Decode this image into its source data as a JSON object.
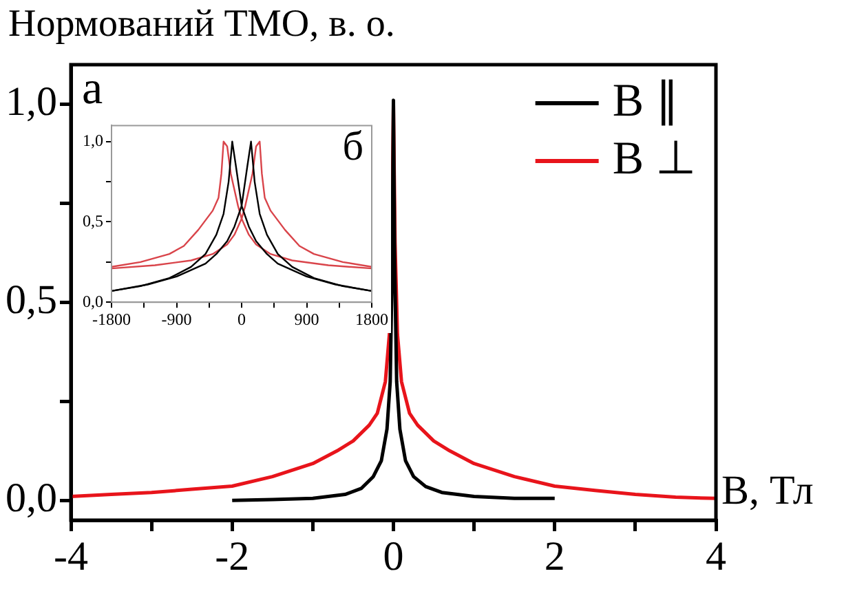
{
  "chart_data": [
    {
      "type": "line",
      "ylabel": "Нормований ТМО, в. о.",
      "xlabel": "B, Тл",
      "annotations": [
        "а"
      ],
      "legend": "top right",
      "grid": false,
      "marker": "none",
      "line_style": "solid",
      "xlim": [
        -4,
        4
      ],
      "xticks": [
        -4,
        {
          "value": -3,
          "label": null
        },
        -2,
        {
          "value": -1,
          "label": null
        },
        0,
        {
          "value": 1,
          "label": null
        },
        2,
        {
          "value": 3,
          "label": null
        },
        4
      ],
      "ylim": [
        -0.05,
        1.1
      ],
      "yticks": [
        {
          "value": 0,
          "label": "0,0"
        },
        {
          "value": 0.25,
          "label": null
        },
        {
          "value": 0.5,
          "label": "0,5"
        },
        {
          "value": 0.75,
          "label": null
        },
        {
          "value": 1,
          "label": "1,0"
        }
      ],
      "series": [
        {
          "name": "B ∥",
          "color": "#000000",
          "x": [
            -2,
            -1.5,
            -1,
            -0.6,
            -0.4,
            -0.25,
            -0.15,
            -0.08,
            -0.04,
            -0.015,
            0,
            0.015,
            0.04,
            0.08,
            0.15,
            0.25,
            0.4,
            0.6,
            1,
            1.5,
            2
          ],
          "values": [
            0,
            0.002,
            0.005,
            0.015,
            0.03,
            0.06,
            0.1,
            0.18,
            0.3,
            0.6,
            1.01,
            0.6,
            0.3,
            0.18,
            0.1,
            0.06,
            0.035,
            0.02,
            0.01,
            0.005,
            0.005
          ]
        },
        {
          "name": "B ⊥",
          "color": "#e8141b",
          "x": [
            -4,
            -3.5,
            -3,
            -2.5,
            -2,
            -1.5,
            -1,
            -0.7,
            -0.5,
            -0.3,
            -0.2,
            -0.1,
            -0.05,
            -0.02,
            0,
            0.02,
            0.05,
            0.1,
            0.2,
            0.3,
            0.5,
            0.7,
            1,
            1.5,
            2,
            2.5,
            3,
            3.5,
            4
          ],
          "values": [
            0.01,
            0.015,
            0.02,
            0.028,
            0.036,
            0.06,
            0.093,
            0.125,
            0.15,
            0.19,
            0.22,
            0.3,
            0.42,
            0.65,
            1.0,
            0.65,
            0.42,
            0.3,
            0.22,
            0.19,
            0.15,
            0.125,
            0.093,
            0.06,
            0.036,
            0.025,
            0.015,
            0.008,
            0.005
          ]
        }
      ]
    },
    {
      "type": "line",
      "annotations": [
        "б"
      ],
      "grid": false,
      "marker": "none",
      "line_style": "solid",
      "xlim": [
        -1800,
        1800
      ],
      "xticks": [
        -1800,
        {
          "value": -1350,
          "label": null
        },
        -900,
        {
          "value": -450,
          "label": null
        },
        0,
        {
          "value": 450,
          "label": null
        },
        900,
        {
          "value": 1350,
          "label": null
        },
        1800
      ],
      "ylim": [
        0,
        1.1
      ],
      "yticks": [
        {
          "value": 0,
          "label": "0,0"
        },
        {
          "value": 0.25,
          "label": null
        },
        {
          "value": 0.5,
          "label": "0,5"
        },
        {
          "value": 0.75,
          "label": null
        },
        {
          "value": 1,
          "label": "1,0"
        }
      ],
      "series": [
        {
          "color": "#000000",
          "x": [
            -1800,
            -1400,
            -1000,
            -700,
            -500,
            -350,
            -250,
            -180,
            -130,
            -80,
            0,
            100,
            200,
            350,
            500,
            900,
            1300,
            1800
          ],
          "values": [
            0.07,
            0.1,
            0.15,
            0.22,
            0.3,
            0.42,
            0.55,
            0.75,
            1.0,
            0.85,
            0.6,
            0.47,
            0.38,
            0.3,
            0.24,
            0.16,
            0.11,
            0.07
          ]
        },
        {
          "color": "#000000",
          "x": [
            -1800,
            -1300,
            -900,
            -500,
            -350,
            -200,
            -100,
            0,
            80,
            130,
            180,
            250,
            350,
            500,
            700,
            1000,
            1400,
            1800
          ],
          "values": [
            0.07,
            0.11,
            0.16,
            0.24,
            0.3,
            0.38,
            0.47,
            0.6,
            0.85,
            1.0,
            0.75,
            0.55,
            0.42,
            0.3,
            0.22,
            0.15,
            0.1,
            0.07
          ]
        },
        {
          "color": "#d9444a",
          "x": [
            -1800,
            -1400,
            -1000,
            -800,
            -600,
            -400,
            -320,
            -280,
            -250,
            -200,
            -150,
            -50,
            0,
            100,
            200,
            400,
            700,
            1200,
            1800
          ],
          "values": [
            0.22,
            0.25,
            0.3,
            0.35,
            0.45,
            0.57,
            0.65,
            0.8,
            1.0,
            0.97,
            0.8,
            0.6,
            0.52,
            0.42,
            0.36,
            0.3,
            0.26,
            0.23,
            0.21
          ]
        },
        {
          "color": "#d9444a",
          "x": [
            -1800,
            -1200,
            -700,
            -400,
            -200,
            -100,
            0,
            50,
            150,
            200,
            250,
            280,
            320,
            400,
            600,
            800,
            1000,
            1400,
            1800
          ],
          "values": [
            0.21,
            0.23,
            0.26,
            0.3,
            0.36,
            0.42,
            0.52,
            0.6,
            0.8,
            0.97,
            1.0,
            0.8,
            0.65,
            0.57,
            0.45,
            0.35,
            0.3,
            0.25,
            0.22
          ]
        }
      ]
    }
  ]
}
